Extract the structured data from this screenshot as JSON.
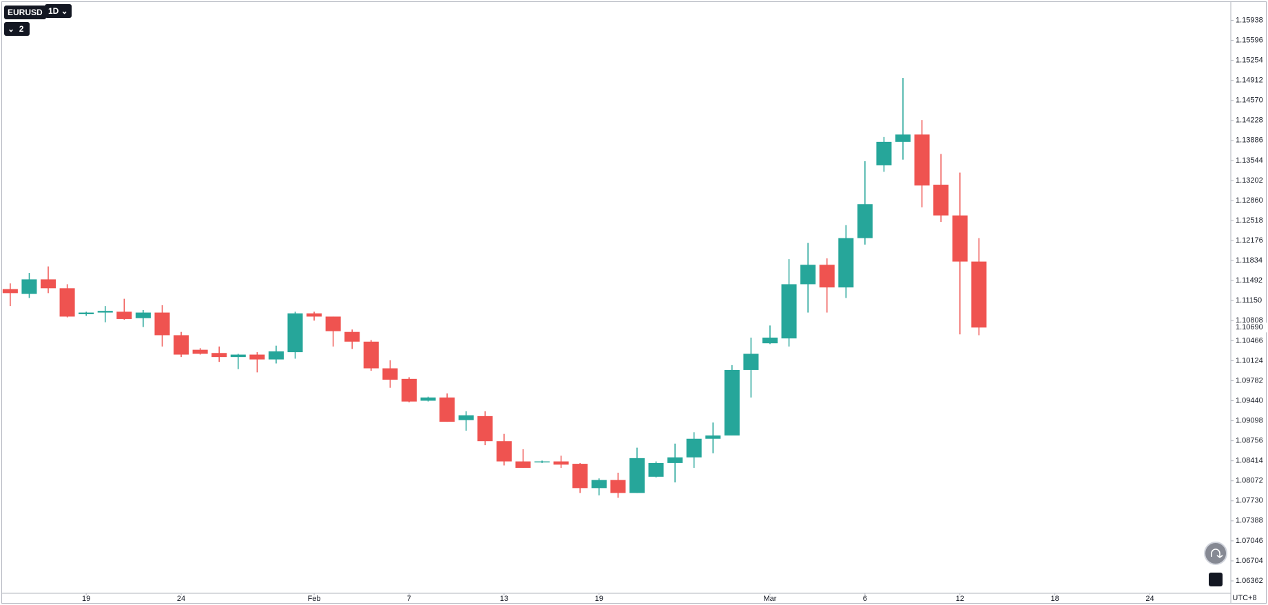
{
  "toolbar": {
    "symbol": "EURUSD",
    "interval": "1D",
    "indicator_count": 2
  },
  "chart_data": {
    "type": "candlestick",
    "up_color": "#26a69a",
    "down_color": "#ef5350",
    "open": [
      1.11347,
      1.11264,
      1.11513,
      1.11361,
      1.10918,
      1.10946,
      1.1096,
      1.1085,
      1.10946,
      1.10559,
      1.1031,
      1.10255,
      1.10186,
      1.10228,
      1.10145,
      1.10269,
      1.10932,
      1.10877,
      1.10615,
      1.10449,
      1.09993,
      1.09813,
      1.0944,
      1.09495,
      1.09108,
      1.09177,
      1.08749,
      1.08403,
      1.08389,
      1.08403,
      1.08362,
      1.07947,
      1.08085,
      1.07864,
      1.08141,
      1.08376,
      1.08472,
      1.0879,
      1.08846,
      1.09965,
      1.10421,
      1.10504,
      1.1143,
      1.11762,
      1.11375,
      1.12218,
      1.13461,
      1.13862,
      1.13987,
      1.1313,
      1.12605,
      1.11817
    ],
    "high": [
      1.11444,
      1.11623,
      1.11734,
      1.1143,
      1.1096,
      1.11057,
      1.11181,
      1.10988,
      1.11071,
      1.10615,
      1.10338,
      1.10366,
      1.10241,
      1.10269,
      1.1038,
      1.1096,
      1.1096,
      1.10877,
      1.10656,
      1.10476,
      1.10131,
      1.09841,
      1.09509,
      1.09564,
      1.0926,
      1.0926,
      1.08873,
      1.08611,
      1.08417,
      1.085,
      1.08376,
      1.08113,
      1.0821,
      1.08638,
      1.08403,
      1.08707,
      1.08901,
      1.09067,
      1.10048,
      1.10518,
      1.10725,
      1.11858,
      1.12135,
      1.11872,
      1.12439,
      1.13531,
      1.13945,
      1.14954,
      1.14235,
      1.13655,
      1.13337,
      1.12218
    ],
    "low": [
      1.11057,
      1.11195,
      1.11278,
      1.10863,
      1.1089,
      1.1078,
      1.10822,
      1.10698,
      1.10366,
      1.10186,
      1.10228,
      1.10103,
      1.09979,
      1.09924,
      1.10076,
      1.10158,
      1.10808,
      1.10366,
      1.10324,
      1.09951,
      1.09661,
      1.09412,
      1.09426,
      1.0908,
      1.08928,
      1.0868,
      1.08334,
      1.08293,
      1.08376,
      1.08293,
      1.07864,
      1.07823,
      1.07781,
      1.07864,
      1.08127,
      1.08044,
      1.08293,
      1.08542,
      1.08846,
      1.09495,
      1.10407,
      1.10366,
      1.10946,
      1.10946,
      1.11195,
      1.12107,
      1.13351,
      1.13558,
      1.12743,
      1.12494,
      1.10573,
      1.10559
    ],
    "close": [
      1.11278,
      1.11513,
      1.11361,
      1.10877,
      1.10946,
      1.10974,
      1.10836,
      1.10946,
      1.10559,
      1.10228,
      1.10241,
      1.10186,
      1.10228,
      1.10145,
      1.10283,
      1.10932,
      1.10877,
      1.10628,
      1.10449,
      1.09993,
      1.09799,
      1.09426,
      1.09495,
      1.0908,
      1.09191,
      1.08749,
      1.08403,
      1.08293,
      1.08403,
      1.08348,
      1.07947,
      1.08085,
      1.07864,
      1.08459,
      1.08376,
      1.08472,
      1.0879,
      1.08846,
      1.09965,
      1.10241,
      1.10518,
      1.1143,
      1.11762,
      1.11375,
      1.12218,
      1.12798,
      1.13862,
      1.13987,
      1.13116,
      1.12605,
      1.11817,
      1.1069
    ],
    "current_price": {
      "value": 1.1069,
      "label": "1.10690"
    },
    "xlim": [
      -0.43,
      64.26
    ],
    "xticks": [
      {
        "value": 4,
        "label": "19"
      },
      {
        "value": 9,
        "label": "24"
      },
      {
        "value": 16,
        "label": "Feb"
      },
      {
        "value": 21,
        "label": "7"
      },
      {
        "value": 26,
        "label": "13"
      },
      {
        "value": 31,
        "label": "19"
      },
      {
        "value": 40,
        "label": "Mar"
      },
      {
        "value": 45,
        "label": "6"
      },
      {
        "value": 50,
        "label": "12"
      },
      {
        "value": 55,
        "label": "18"
      },
      {
        "value": 60,
        "label": "24"
      }
    ],
    "ylim": [
      1.0615,
      1.1625
    ],
    "yticks": [
      1.15938,
      1.15596,
      1.15254,
      1.14912,
      {
        "value": 1.1457,
        "label": "1.14570"
      },
      1.14228,
      1.13886,
      1.13544,
      1.13202,
      {
        "value": 1.1286,
        "label": "1.12860"
      },
      1.12518,
      1.12176,
      1.11834,
      1.11492,
      {
        "value": 1.1115,
        "label": "1.11150"
      },
      1.10808,
      1.10466,
      1.10124,
      1.09782,
      {
        "value": 1.0944,
        "label": "1.09440"
      },
      1.09098,
      1.08756,
      1.08414,
      1.08072,
      {
        "value": 1.0773,
        "label": "1.07730"
      },
      1.07388,
      1.07046,
      1.06704,
      1.06362
    ],
    "timezone": "UTC+8"
  }
}
